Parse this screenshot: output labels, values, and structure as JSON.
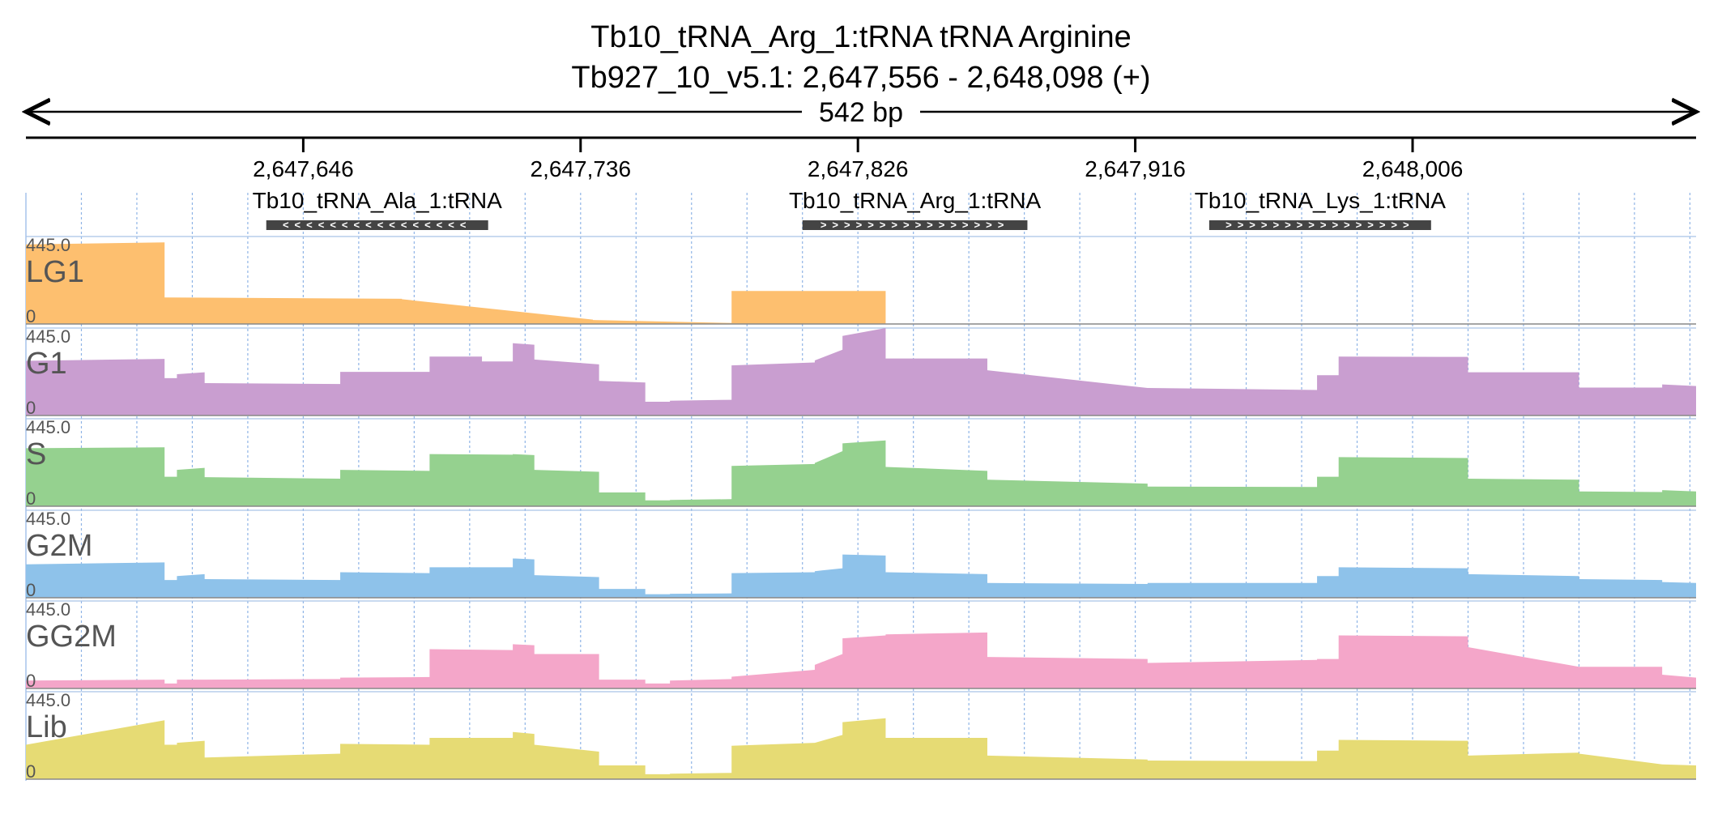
{
  "header": {
    "title_line1": "Tb10_tRNA_Arg_1:tRNA  tRNA Arginine",
    "title_line2": "Tb927_10_v5.1: 2,647,556 - 2,648,098 (+)",
    "span_label": "542 bp"
  },
  "chart_data": {
    "type": "area",
    "x_range": [
      2647556,
      2648098
    ],
    "x_ticks": [
      2647646,
      2647736,
      2647826,
      2647916,
      2648006
    ],
    "x_tick_labels": [
      "2,647,646",
      "2,647,736",
      "2,647,826",
      "2,647,916",
      "2,648,006"
    ],
    "grid": true,
    "genes": [
      {
        "name": "Tb10_tRNA_Ala_1:tRNA",
        "start": 2647634,
        "end": 2647706,
        "strand": "-"
      },
      {
        "name": "Tb10_tRNA_Arg_1:tRNA",
        "start": 2647808,
        "end": 2647881,
        "strand": "+"
      },
      {
        "name": "Tb10_tRNA_Lys_1:tRNA",
        "start": 2647940,
        "end": 2648012,
        "strand": "+"
      }
    ],
    "tracks": [
      {
        "name": "LG1",
        "color": "#fdbf6f",
        "ymin": 0,
        "ymax": 445.0,
        "ymax_label": "445.0",
        "ymin_label": "0",
        "segments": [
          [
            2647556,
            2647601,
            405,
            415
          ],
          [
            2647601,
            2647678,
            135,
            128
          ],
          [
            2647678,
            2647740,
            126,
            22
          ],
          [
            2647740,
            2647785,
            20,
            5
          ],
          [
            2647785,
            2647835,
            168,
            168
          ]
        ]
      },
      {
        "name": "G1",
        "color": "#c99ed0",
        "ymin": 0,
        "ymax": 445.0,
        "ymax_label": "445.0",
        "ymin_label": "0",
        "segments": [
          [
            2647556,
            2647601,
            278,
            288
          ],
          [
            2647601,
            2647605,
            190,
            190
          ],
          [
            2647605,
            2647614,
            210,
            220
          ],
          [
            2647614,
            2647658,
            165,
            160
          ],
          [
            2647658,
            2647687,
            222,
            222
          ],
          [
            2647687,
            2647704,
            300,
            300
          ],
          [
            2647704,
            2647714,
            275,
            275
          ],
          [
            2647714,
            2647721,
            368,
            360
          ],
          [
            2647721,
            2647742,
            285,
            260
          ],
          [
            2647742,
            2647757,
            176,
            168
          ],
          [
            2647757,
            2647765,
            70,
            70
          ],
          [
            2647765,
            2647785,
            75,
            80
          ],
          [
            2647785,
            2647812,
            255,
            270
          ],
          [
            2647812,
            2647821,
            280,
            335
          ],
          [
            2647821,
            2647835,
            405,
            445
          ],
          [
            2647835,
            2647868,
            290,
            290
          ],
          [
            2647868,
            2647920,
            230,
            140
          ],
          [
            2647920,
            2647975,
            140,
            130
          ],
          [
            2647975,
            2647982,
            205,
            205
          ],
          [
            2647982,
            2648024,
            300,
            298
          ],
          [
            2648024,
            2648060,
            220,
            220
          ],
          [
            2648060,
            2648087,
            142,
            142
          ],
          [
            2648087,
            2648098,
            158,
            150
          ]
        ]
      },
      {
        "name": "S",
        "color": "#95d18f",
        "ymin": 0,
        "ymax": 445.0,
        "ymax_label": "445.0",
        "ymin_label": "0",
        "segments": [
          [
            2647556,
            2647601,
            295,
            300
          ],
          [
            2647601,
            2647605,
            150,
            150
          ],
          [
            2647605,
            2647614,
            185,
            195
          ],
          [
            2647614,
            2647658,
            148,
            140
          ],
          [
            2647658,
            2647687,
            185,
            180
          ],
          [
            2647687,
            2647714,
            265,
            262
          ],
          [
            2647714,
            2647721,
            265,
            260
          ],
          [
            2647721,
            2647742,
            185,
            175
          ],
          [
            2647742,
            2647757,
            70,
            70
          ],
          [
            2647757,
            2647765,
            30,
            30
          ],
          [
            2647765,
            2647785,
            32,
            36
          ],
          [
            2647785,
            2647812,
            205,
            215
          ],
          [
            2647812,
            2647821,
            220,
            280
          ],
          [
            2647821,
            2647835,
            320,
            335
          ],
          [
            2647835,
            2647868,
            200,
            180
          ],
          [
            2647868,
            2647920,
            135,
            115
          ],
          [
            2647920,
            2647975,
            100,
            98
          ],
          [
            2647975,
            2647982,
            150,
            150
          ],
          [
            2647982,
            2648024,
            250,
            245
          ],
          [
            2648024,
            2648060,
            140,
            135
          ],
          [
            2648060,
            2648087,
            75,
            72
          ],
          [
            2648087,
            2648098,
            82,
            75
          ]
        ]
      },
      {
        "name": "G2M",
        "color": "#8ec2ea",
        "ymin": 0,
        "ymax": 445.0,
        "ymax_label": "445.0",
        "ymin_label": "0",
        "segments": [
          [
            2647556,
            2647601,
            170,
            180
          ],
          [
            2647601,
            2647605,
            90,
            90
          ],
          [
            2647605,
            2647614,
            110,
            120
          ],
          [
            2647614,
            2647658,
            95,
            90
          ],
          [
            2647658,
            2647687,
            130,
            125
          ],
          [
            2647687,
            2647714,
            155,
            155
          ],
          [
            2647714,
            2647721,
            200,
            195
          ],
          [
            2647721,
            2647742,
            115,
            105
          ],
          [
            2647742,
            2647757,
            45,
            45
          ],
          [
            2647757,
            2647765,
            18,
            18
          ],
          [
            2647765,
            2647785,
            20,
            22
          ],
          [
            2647785,
            2647812,
            125,
            130
          ],
          [
            2647812,
            2647821,
            135,
            150
          ],
          [
            2647821,
            2647835,
            220,
            215
          ],
          [
            2647835,
            2647868,
            130,
            120
          ],
          [
            2647868,
            2647920,
            75,
            70
          ],
          [
            2647920,
            2647975,
            75,
            75
          ],
          [
            2647975,
            2647982,
            110,
            110
          ],
          [
            2647982,
            2648024,
            155,
            150
          ],
          [
            2648024,
            2648060,
            120,
            110
          ],
          [
            2648060,
            2648087,
            95,
            90
          ],
          [
            2648087,
            2648098,
            80,
            75
          ]
        ]
      },
      {
        "name": "GG2M",
        "color": "#f4a6c9",
        "ymin": 0,
        "ymax": 445.0,
        "ymax_label": "445.0",
        "ymin_label": "0",
        "segments": [
          [
            2647556,
            2647601,
            40,
            45
          ],
          [
            2647601,
            2647605,
            25,
            25
          ],
          [
            2647605,
            2647614,
            45,
            45
          ],
          [
            2647614,
            2647658,
            45,
            48
          ],
          [
            2647658,
            2647687,
            55,
            58
          ],
          [
            2647687,
            2647714,
            200,
            195
          ],
          [
            2647714,
            2647721,
            225,
            220
          ],
          [
            2647721,
            2647742,
            175,
            175
          ],
          [
            2647742,
            2647757,
            45,
            45
          ],
          [
            2647757,
            2647765,
            25,
            25
          ],
          [
            2647765,
            2647785,
            40,
            48
          ],
          [
            2647785,
            2647812,
            60,
            95
          ],
          [
            2647812,
            2647821,
            120,
            175
          ],
          [
            2647821,
            2647835,
            255,
            270
          ],
          [
            2647835,
            2647868,
            275,
            285
          ],
          [
            2647868,
            2647920,
            160,
            150
          ],
          [
            2647920,
            2647975,
            130,
            145
          ],
          [
            2647975,
            2647982,
            150,
            150
          ],
          [
            2647982,
            2648024,
            270,
            265
          ],
          [
            2648024,
            2648060,
            210,
            110
          ],
          [
            2648060,
            2648087,
            110,
            110
          ],
          [
            2648087,
            2648098,
            70,
            55
          ]
        ]
      },
      {
        "name": "Lib",
        "color": "#e6db74",
        "ymin": 0,
        "ymax": 445.0,
        "ymax_label": "445.0",
        "ymin_label": "0",
        "segments": [
          [
            2647556,
            2647601,
            175,
            300
          ],
          [
            2647601,
            2647605,
            175,
            175
          ],
          [
            2647605,
            2647614,
            185,
            195
          ],
          [
            2647614,
            2647658,
            110,
            130
          ],
          [
            2647658,
            2647687,
            180,
            175
          ],
          [
            2647687,
            2647714,
            210,
            210
          ],
          [
            2647714,
            2647721,
            240,
            230
          ],
          [
            2647721,
            2647742,
            175,
            140
          ],
          [
            2647742,
            2647757,
            70,
            70
          ],
          [
            2647757,
            2647765,
            25,
            25
          ],
          [
            2647765,
            2647785,
            28,
            32
          ],
          [
            2647785,
            2647812,
            170,
            185
          ],
          [
            2647812,
            2647821,
            185,
            225
          ],
          [
            2647821,
            2647835,
            290,
            310
          ],
          [
            2647835,
            2647868,
            210,
            210
          ],
          [
            2647868,
            2647920,
            120,
            100
          ],
          [
            2647920,
            2647975,
            95,
            92
          ],
          [
            2647975,
            2647982,
            145,
            145
          ],
          [
            2647982,
            2648024,
            200,
            195
          ],
          [
            2648024,
            2648060,
            120,
            135
          ],
          [
            2648060,
            2648087,
            130,
            75
          ],
          [
            2648087,
            2648098,
            75,
            70
          ]
        ]
      }
    ]
  }
}
